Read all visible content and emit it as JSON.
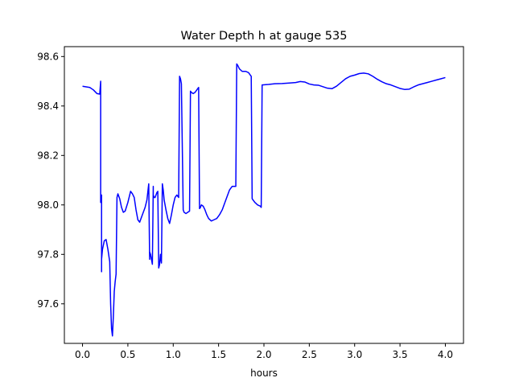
{
  "chart_data": {
    "type": "line",
    "title": "Water Depth h at gauge 535",
    "xlabel": "hours",
    "ylabel": "",
    "xlim": [
      -0.2,
      4.2
    ],
    "ylim": [
      97.44,
      98.64
    ],
    "xticks": [
      0.0,
      0.5,
      1.0,
      1.5,
      2.0,
      2.5,
      3.0,
      3.5,
      4.0
    ],
    "xtick_labels": [
      "0.0",
      "0.5",
      "1.0",
      "1.5",
      "2.0",
      "2.5",
      "3.0",
      "3.5",
      "4.0"
    ],
    "yticks": [
      97.6,
      97.8,
      98.0,
      98.2,
      98.4,
      98.6
    ],
    "ytick_labels": [
      "97.6",
      "97.8",
      "98.0",
      "98.2",
      "98.4",
      "98.6"
    ],
    "grid": false,
    "legend": "none",
    "series": [
      {
        "color": "#0000ff",
        "x": [
          0.0,
          0.08,
          0.12,
          0.16,
          0.19,
          0.2,
          0.2,
          0.21,
          0.21,
          0.21,
          0.22,
          0.24,
          0.26,
          0.28,
          0.3,
          0.31,
          0.32,
          0.33,
          0.34,
          0.35,
          0.36,
          0.37,
          0.38,
          0.39,
          0.41,
          0.43,
          0.45,
          0.47,
          0.5,
          0.53,
          0.55,
          0.57,
          0.59,
          0.61,
          0.63,
          0.65,
          0.67,
          0.69,
          0.71,
          0.73,
          0.74,
          0.74,
          0.75,
          0.76,
          0.77,
          0.78,
          0.78,
          0.79,
          0.8,
          0.81,
          0.82,
          0.83,
          0.84,
          0.85,
          0.86,
          0.87,
          0.88,
          0.89,
          0.9,
          0.92,
          0.94,
          0.96,
          0.98,
          1.0,
          1.02,
          1.04,
          1.06,
          1.07,
          1.08,
          1.09,
          1.11,
          1.12,
          1.14,
          1.16,
          1.18,
          1.19,
          1.2,
          1.22,
          1.24,
          1.26,
          1.28,
          1.29,
          1.3,
          1.31,
          1.33,
          1.35,
          1.37,
          1.39,
          1.42,
          1.45,
          1.48,
          1.51,
          1.54,
          1.58,
          1.62,
          1.65,
          1.67,
          1.69,
          1.7,
          1.71,
          1.73,
          1.76,
          1.8,
          1.83,
          1.86,
          1.87,
          1.88,
          1.9,
          1.93,
          1.96,
          1.97,
          1.98,
          2.05,
          2.12,
          2.2,
          2.28,
          2.35,
          2.4,
          2.45,
          2.5,
          2.55,
          2.6,
          2.65,
          2.7,
          2.75,
          2.8,
          2.85,
          2.9,
          2.95,
          3.0,
          3.05,
          3.1,
          3.15,
          3.2,
          3.25,
          3.3,
          3.35,
          3.4,
          3.45,
          3.5,
          3.55,
          3.6,
          3.65,
          3.7,
          3.75,
          3.8,
          3.85,
          3.9,
          3.95,
          4.0
        ],
        "y": [
          98.48,
          98.475,
          98.465,
          98.45,
          98.448,
          98.5,
          98.01,
          98.04,
          97.73,
          97.78,
          97.82,
          97.855,
          97.86,
          97.82,
          97.77,
          97.6,
          97.5,
          97.47,
          97.55,
          97.65,
          97.69,
          97.72,
          98.03,
          98.045,
          98.025,
          97.99,
          97.97,
          97.975,
          98.01,
          98.055,
          98.045,
          98.03,
          97.98,
          97.94,
          97.93,
          97.95,
          97.97,
          97.99,
          98.02,
          98.085,
          97.78,
          97.81,
          97.8,
          97.78,
          97.76,
          98.075,
          98.04,
          98.03,
          98.03,
          98.04,
          98.05,
          98.055,
          97.745,
          97.76,
          97.8,
          97.765,
          98.085,
          98.06,
          98.02,
          97.98,
          97.945,
          97.925,
          97.96,
          98.0,
          98.03,
          98.04,
          98.03,
          98.52,
          98.51,
          98.49,
          97.98,
          97.97,
          97.965,
          97.97,
          97.975,
          98.46,
          98.455,
          98.45,
          98.455,
          98.465,
          98.475,
          97.985,
          97.99,
          98.0,
          97.995,
          97.98,
          97.96,
          97.945,
          97.935,
          97.94,
          97.945,
          97.96,
          97.98,
          98.02,
          98.06,
          98.075,
          98.075,
          98.075,
          98.57,
          98.565,
          98.55,
          98.54,
          98.54,
          98.535,
          98.52,
          98.025,
          98.02,
          98.01,
          98.0,
          97.995,
          97.99,
          98.485,
          98.487,
          98.49,
          98.491,
          98.493,
          98.495,
          98.499,
          98.497,
          98.489,
          98.485,
          98.484,
          98.478,
          98.472,
          98.47,
          98.48,
          98.495,
          98.51,
          98.52,
          98.525,
          98.531,
          98.533,
          98.53,
          98.52,
          98.508,
          98.498,
          98.49,
          98.485,
          98.478,
          98.471,
          98.467,
          98.468,
          98.477,
          98.485,
          98.49,
          98.495,
          98.5,
          98.505,
          98.51,
          98.515
        ]
      }
    ]
  }
}
